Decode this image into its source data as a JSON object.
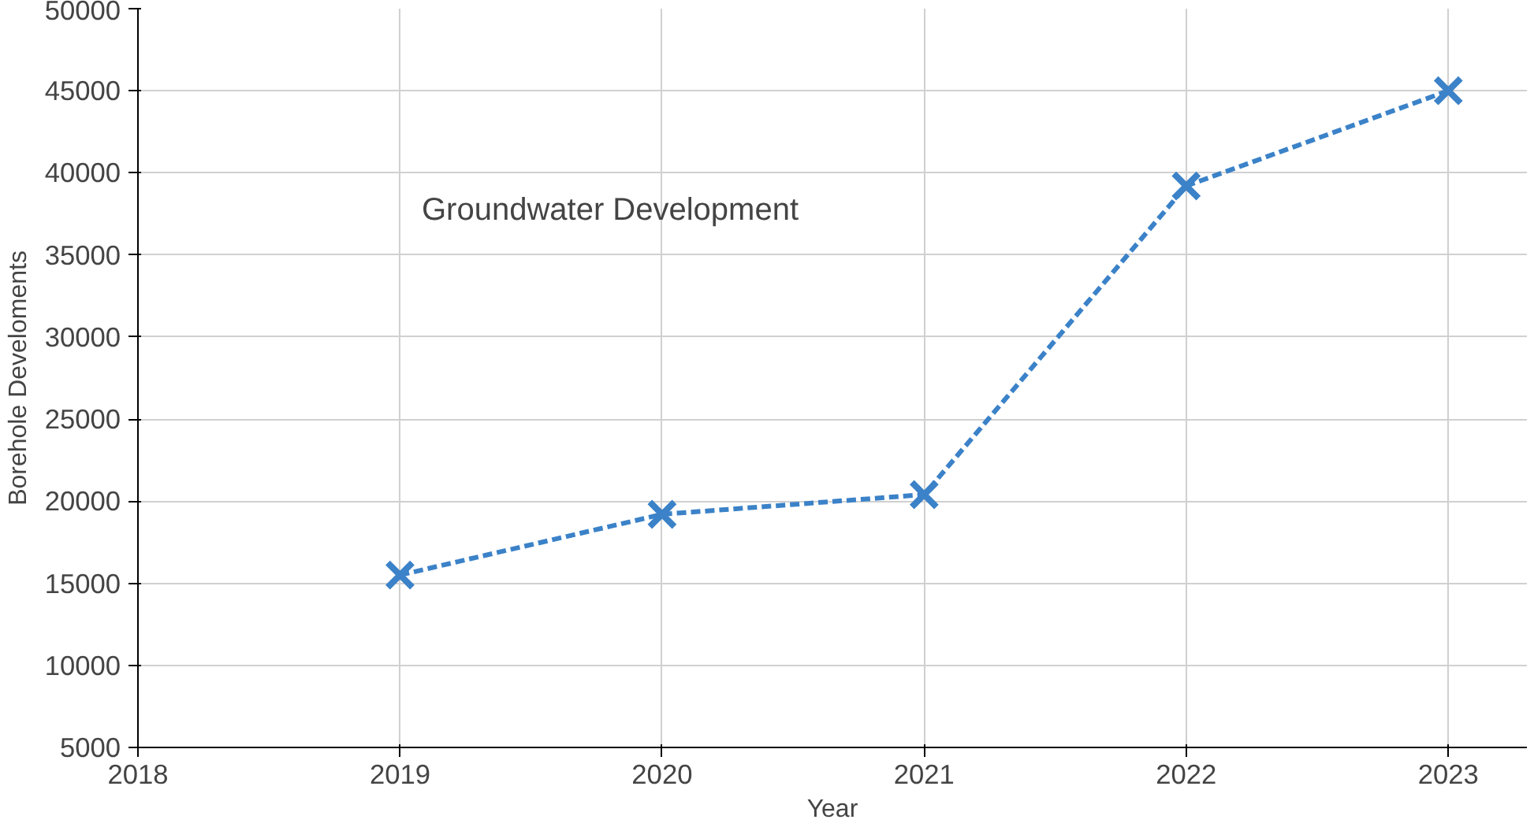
{
  "chart_data": {
    "type": "line",
    "xlabel": "Year",
    "ylabel": "Borehole Develoments",
    "annotations": [
      "Groundwater Development"
    ],
    "x": [
      2019,
      2020,
      2021,
      2022,
      2023
    ],
    "series": [
      {
        "color": "#3b82c8",
        "values": [
          15500,
          19200,
          20400,
          39200,
          45000
        ]
      }
    ],
    "xlim": [
      2018,
      2023.3
    ],
    "xticks": [
      2018,
      2019,
      2020,
      2021,
      2022,
      2023
    ],
    "ylim": [
      5000,
      50000
    ],
    "yticks": [
      5000,
      10000,
      15000,
      20000,
      25000,
      30000,
      35000,
      40000,
      45000,
      50000
    ],
    "grid": true,
    "marker": "cross",
    "line_style": "dashed"
  }
}
